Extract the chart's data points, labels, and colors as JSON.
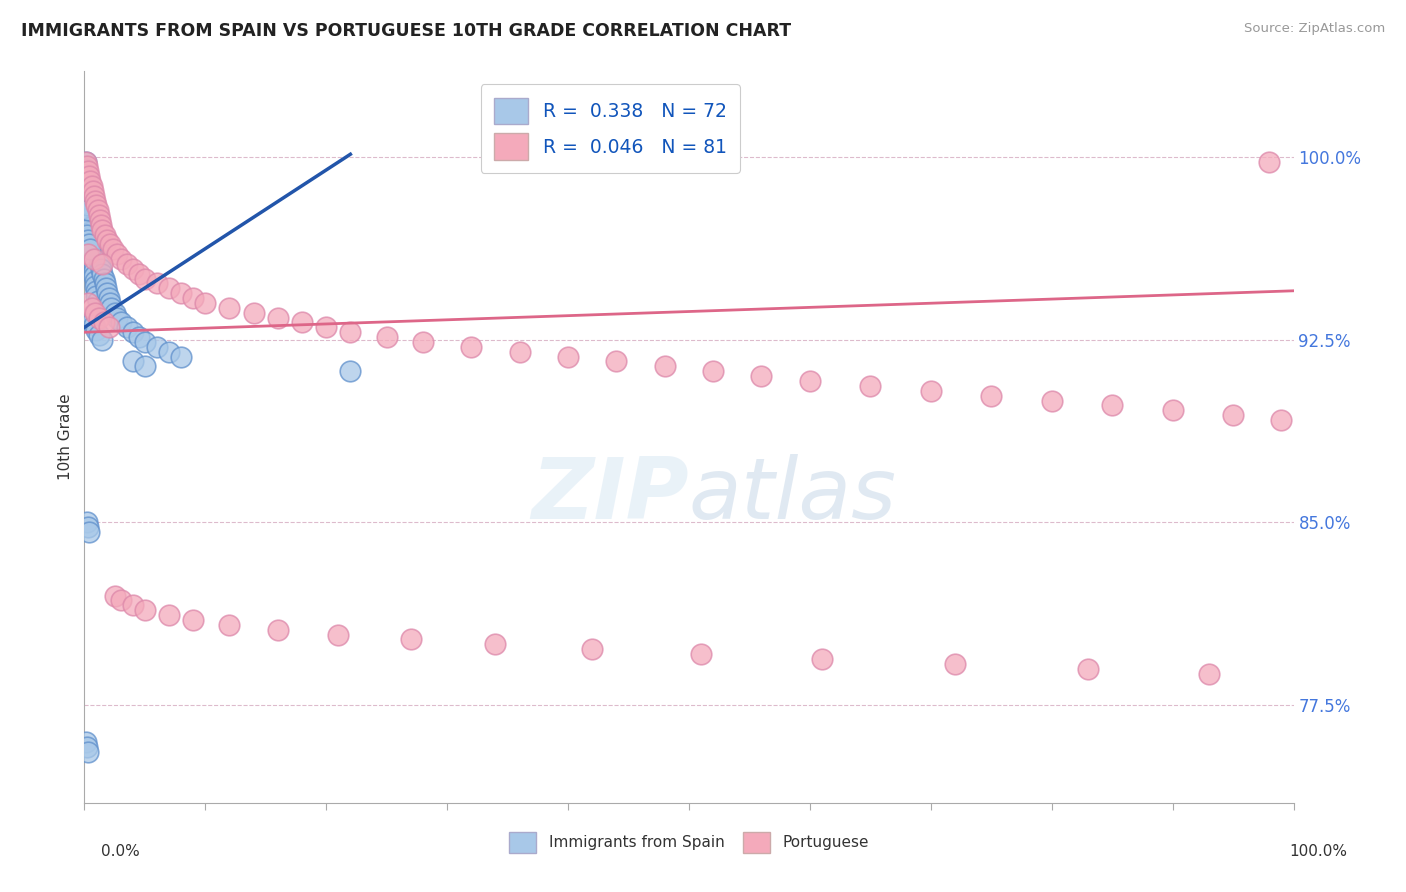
{
  "title": "IMMIGRANTS FROM SPAIN VS PORTUGUESE 10TH GRADE CORRELATION CHART",
  "source": "Source: ZipAtlas.com",
  "ylabel": "10th Grade",
  "legend_label1": "Immigrants from Spain",
  "legend_label2": "Portuguese",
  "R1": 0.338,
  "N1": 72,
  "R2": 0.046,
  "N2": 81,
  "color_blue": "#A8C8E8",
  "color_pink": "#F4AABB",
  "color_blue_dark": "#6090CC",
  "color_blue_line": "#2255AA",
  "color_pink_line": "#DD6688",
  "ytick_labels": [
    "77.5%",
    "85.0%",
    "92.5%",
    "100.0%"
  ],
  "ytick_values": [
    0.775,
    0.85,
    0.925,
    1.0
  ],
  "xlim": [
    0.0,
    1.0
  ],
  "ylim": [
    0.735,
    1.035
  ],
  "blue_x": [
    0.001,
    0.001,
    0.002,
    0.002,
    0.002,
    0.003,
    0.003,
    0.003,
    0.003,
    0.004,
    0.004,
    0.004,
    0.005,
    0.005,
    0.005,
    0.006,
    0.006,
    0.006,
    0.007,
    0.007,
    0.008,
    0.008,
    0.008,
    0.009,
    0.009,
    0.01,
    0.01,
    0.011,
    0.012,
    0.012,
    0.013,
    0.014,
    0.015,
    0.016,
    0.017,
    0.018,
    0.019,
    0.02,
    0.021,
    0.022,
    0.025,
    0.027,
    0.03,
    0.035,
    0.04,
    0.045,
    0.05,
    0.06,
    0.07,
    0.08,
    0.001,
    0.002,
    0.003,
    0.004,
    0.005,
    0.006,
    0.007,
    0.008,
    0.01,
    0.012,
    0.015,
    0.002,
    0.003,
    0.004,
    0.001,
    0.002,
    0.003,
    0.04,
    0.05,
    0.002,
    0.003,
    0.22
  ],
  "blue_y": [
    0.998,
    0.995,
    0.993,
    0.99,
    0.988,
    0.986,
    0.984,
    0.982,
    0.979,
    0.977,
    0.975,
    0.973,
    0.971,
    0.969,
    0.967,
    0.965,
    0.963,
    0.961,
    0.959,
    0.957,
    0.955,
    0.953,
    0.951,
    0.949,
    0.947,
    0.945,
    0.943,
    0.941,
    0.96,
    0.958,
    0.956,
    0.954,
    0.952,
    0.95,
    0.948,
    0.946,
    0.944,
    0.942,
    0.94,
    0.938,
    0.936,
    0.934,
    0.932,
    0.93,
    0.928,
    0.926,
    0.924,
    0.922,
    0.92,
    0.918,
    0.97,
    0.968,
    0.966,
    0.964,
    0.962,
    0.935,
    0.933,
    0.931,
    0.929,
    0.927,
    0.925,
    0.85,
    0.848,
    0.846,
    0.76,
    0.758,
    0.756,
    0.916,
    0.914,
    0.98,
    0.978,
    0.912
  ],
  "pink_x": [
    0.001,
    0.002,
    0.003,
    0.004,
    0.005,
    0.006,
    0.007,
    0.008,
    0.009,
    0.01,
    0.011,
    0.012,
    0.013,
    0.014,
    0.015,
    0.017,
    0.019,
    0.021,
    0.024,
    0.027,
    0.03,
    0.035,
    0.04,
    0.045,
    0.05,
    0.06,
    0.07,
    0.08,
    0.09,
    0.1,
    0.12,
    0.14,
    0.16,
    0.18,
    0.2,
    0.22,
    0.25,
    0.28,
    0.32,
    0.36,
    0.4,
    0.44,
    0.48,
    0.52,
    0.56,
    0.6,
    0.65,
    0.7,
    0.75,
    0.8,
    0.85,
    0.9,
    0.95,
    0.98,
    0.003,
    0.006,
    0.009,
    0.012,
    0.016,
    0.02,
    0.025,
    0.03,
    0.04,
    0.05,
    0.07,
    0.09,
    0.12,
    0.16,
    0.21,
    0.27,
    0.34,
    0.42,
    0.51,
    0.61,
    0.72,
    0.83,
    0.93,
    0.003,
    0.008,
    0.015,
    0.99
  ],
  "pink_y": [
    0.998,
    0.996,
    0.994,
    0.992,
    0.99,
    0.988,
    0.986,
    0.984,
    0.982,
    0.98,
    0.978,
    0.976,
    0.974,
    0.972,
    0.97,
    0.968,
    0.966,
    0.964,
    0.962,
    0.96,
    0.958,
    0.956,
    0.954,
    0.952,
    0.95,
    0.948,
    0.946,
    0.944,
    0.942,
    0.94,
    0.938,
    0.936,
    0.934,
    0.932,
    0.93,
    0.928,
    0.926,
    0.924,
    0.922,
    0.92,
    0.918,
    0.916,
    0.914,
    0.912,
    0.91,
    0.908,
    0.906,
    0.904,
    0.902,
    0.9,
    0.898,
    0.896,
    0.894,
    0.998,
    0.94,
    0.938,
    0.936,
    0.934,
    0.932,
    0.93,
    0.82,
    0.818,
    0.816,
    0.814,
    0.812,
    0.81,
    0.808,
    0.806,
    0.804,
    0.802,
    0.8,
    0.798,
    0.796,
    0.794,
    0.792,
    0.79,
    0.788,
    0.96,
    0.958,
    0.956,
    0.892
  ],
  "blue_line_x0": 0.0,
  "blue_line_y0": 0.93,
  "blue_line_x1": 0.22,
  "blue_line_y1": 1.001,
  "pink_line_x0": 0.0,
  "pink_line_y0": 0.928,
  "pink_line_x1": 1.0,
  "pink_line_y1": 0.945
}
